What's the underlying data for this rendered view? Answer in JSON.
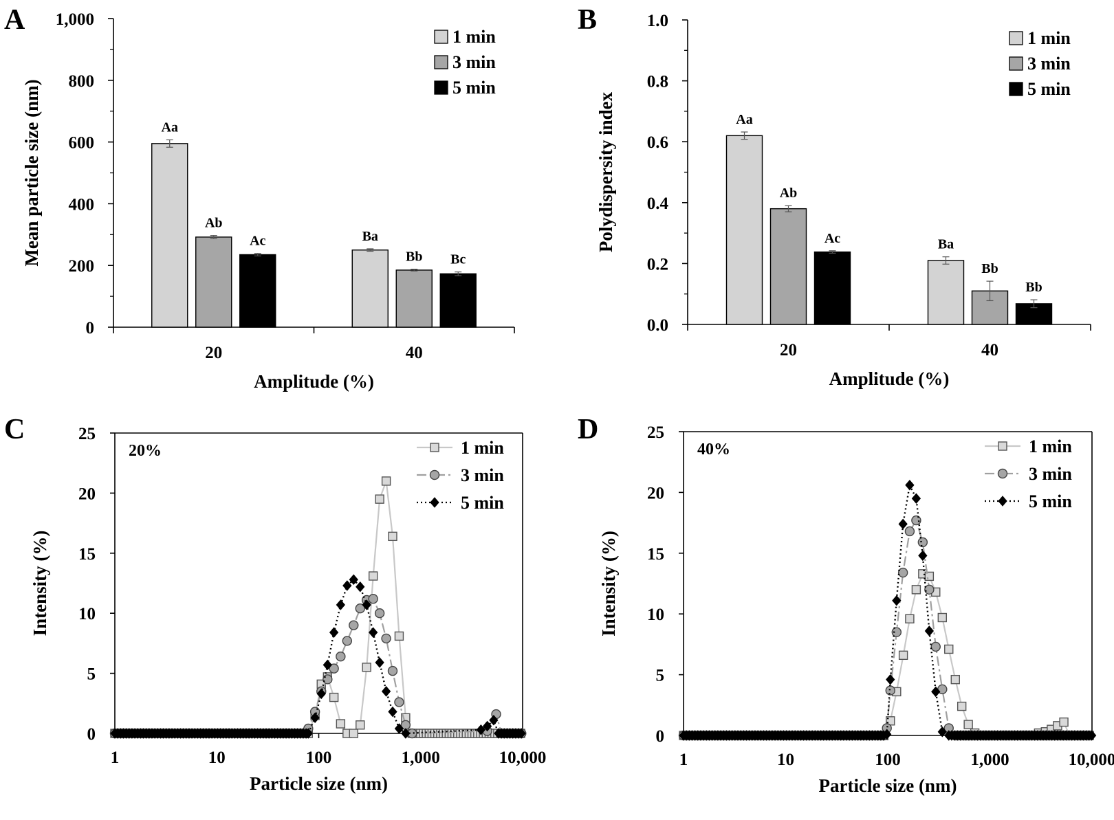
{
  "colors": {
    "min1": "#d3d3d3",
    "min3": "#a6a6a6",
    "min5": "#000000",
    "line1": "#c8c8c8",
    "line3": "#a0a0a0",
    "line5": "#000000"
  },
  "chart_data": [
    {
      "panel": "A",
      "type": "bar",
      "xlabel": "Amplitude (%)",
      "ylabel": "Mean particle size (nm)",
      "ylim": [
        0,
        1000
      ],
      "yticks": [
        "0",
        "200",
        "400",
        "600",
        "800",
        "1,000"
      ],
      "categories": [
        "20",
        "40"
      ],
      "legend_position": "top-right",
      "series": [
        {
          "name": "1 min",
          "values": [
            595,
            250
          ],
          "errors": [
            12,
            4
          ],
          "labels": [
            "Aa",
            "Ba"
          ]
        },
        {
          "name": "3 min",
          "values": [
            292,
            185
          ],
          "errors": [
            5,
            3
          ],
          "labels": [
            "Ab",
            "Bb"
          ]
        },
        {
          "name": "5 min",
          "values": [
            235,
            173
          ],
          "errors": [
            4,
            6
          ],
          "labels": [
            "Ac",
            "Bc"
          ]
        }
      ]
    },
    {
      "panel": "B",
      "type": "bar",
      "xlabel": "Amplitude (%)",
      "ylabel": "Polydispersity index",
      "ylim": [
        0,
        1.0
      ],
      "yticks": [
        "0.0",
        "0.2",
        "0.4",
        "0.6",
        "0.8",
        "1.0"
      ],
      "categories": [
        "20",
        "40"
      ],
      "legend_position": "top-right",
      "series": [
        {
          "name": "1 min",
          "values": [
            0.62,
            0.21
          ],
          "errors": [
            0.012,
            0.012
          ],
          "labels": [
            "Aa",
            "Ba"
          ]
        },
        {
          "name": "3 min",
          "values": [
            0.38,
            0.11
          ],
          "errors": [
            0.01,
            0.032
          ],
          "labels": [
            "Ab",
            "Bb"
          ]
        },
        {
          "name": "5 min",
          "values": [
            0.238,
            0.068
          ],
          "errors": [
            0.004,
            0.013
          ],
          "labels": [
            "Ac",
            "Bb"
          ]
        }
      ]
    },
    {
      "panel": "C",
      "type": "line",
      "inset_label": "20%",
      "xlabel": "Particle size (nm)",
      "ylabel": "Intensity (%)",
      "xscale": "log",
      "xlim": [
        1,
        10000
      ],
      "ylim": [
        0,
        25
      ],
      "xticks": [
        "1",
        "10",
        "100",
        "1,000",
        "10,000"
      ],
      "yticks": [
        "0",
        "5",
        "10",
        "15",
        "20",
        "25"
      ],
      "legend_position": "top-right",
      "series": [
        {
          "name": "1 min",
          "marker": "square",
          "dash": "solid",
          "points": [
            [
              79,
              0
            ],
            [
              92,
              1.5
            ],
            [
              106,
              4.1
            ],
            [
              122,
              4.7
            ],
            [
              141,
              3.0
            ],
            [
              164,
              0.8
            ],
            [
              190,
              0
            ],
            [
              220,
              0
            ],
            [
              255,
              0.7
            ],
            [
              295,
              5.5
            ],
            [
              342,
              13.1
            ],
            [
              396,
              19.5
            ],
            [
              459,
              21.0
            ],
            [
              531,
              16.4
            ],
            [
              615,
              8.1
            ],
            [
              712,
              1.3
            ],
            [
              825,
              0
            ]
          ]
        },
        {
          "name": "3 min",
          "marker": "circle",
          "dash": "dashdot",
          "points": [
            [
              79,
              0.4
            ],
            [
              92,
              1.8
            ],
            [
              106,
              3.5
            ],
            [
              122,
              4.5
            ],
            [
              141,
              5.4
            ],
            [
              164,
              6.4
            ],
            [
              190,
              7.7
            ],
            [
              220,
              9.0
            ],
            [
              255,
              10.4
            ],
            [
              295,
              11.1
            ],
            [
              342,
              11.2
            ],
            [
              396,
              10.0
            ],
            [
              459,
              7.9
            ],
            [
              531,
              5.2
            ],
            [
              615,
              2.6
            ],
            [
              712,
              0.7
            ],
            [
              825,
              0
            ],
            [
              4500,
              0.2
            ],
            [
              5500,
              1.6
            ],
            [
              6200,
              0
            ]
          ]
        },
        {
          "name": "5 min",
          "marker": "diamond",
          "dash": "dotted",
          "points": [
            [
              79,
              0
            ],
            [
              92,
              1.3
            ],
            [
              106,
              3.3
            ],
            [
              122,
              5.7
            ],
            [
              141,
              8.4
            ],
            [
              164,
              10.7
            ],
            [
              190,
              12.3
            ],
            [
              220,
              12.8
            ],
            [
              255,
              12.2
            ],
            [
              295,
              10.7
            ],
            [
              342,
              8.4
            ],
            [
              396,
              5.9
            ],
            [
              459,
              3.5
            ],
            [
              531,
              1.8
            ],
            [
              615,
              0.4
            ],
            [
              712,
              0
            ],
            [
              3900,
              0.3
            ],
            [
              4500,
              0.6
            ],
            [
              5200,
              1.1
            ],
            [
              5800,
              0
            ]
          ]
        }
      ]
    },
    {
      "panel": "D",
      "type": "line",
      "inset_label": "40%",
      "xlabel": "Particle size (nm)",
      "ylabel": "Intensity (%)",
      "xscale": "log",
      "xlim": [
        1,
        10000
      ],
      "ylim": [
        0,
        25
      ],
      "xticks": [
        "1",
        "10",
        "100",
        "1,000",
        "10,000"
      ],
      "yticks": [
        "0",
        "5",
        "10",
        "15",
        "20",
        "25"
      ],
      "legend_position": "top-right",
      "series": [
        {
          "name": "1 min",
          "marker": "square",
          "dash": "solid",
          "points": [
            [
              91,
              0
            ],
            [
              106,
              1.2
            ],
            [
              122,
              3.6
            ],
            [
              142,
              6.6
            ],
            [
              164,
              9.6
            ],
            [
              190,
              12.0
            ],
            [
              220,
              13.3
            ],
            [
              255,
              13.1
            ],
            [
              295,
              11.8
            ],
            [
              342,
              9.7
            ],
            [
              396,
              7.1
            ],
            [
              459,
              4.6
            ],
            [
              531,
              2.4
            ],
            [
              615,
              0.9
            ],
            [
              712,
              0.2
            ],
            [
              825,
              0
            ],
            [
              3000,
              0.2
            ],
            [
              3500,
              0.3
            ],
            [
              4000,
              0.5
            ],
            [
              4600,
              0.8
            ],
            [
              5300,
              1.1
            ],
            [
              6000,
              0
            ]
          ]
        },
        {
          "name": "3 min",
          "marker": "circle",
          "dash": "dashdot",
          "points": [
            [
              91,
              0
            ],
            [
              98,
              0.6
            ],
            [
              106,
              3.7
            ],
            [
              122,
              8.5
            ],
            [
              141,
              13.4
            ],
            [
              164,
              16.8
            ],
            [
              190,
              17.7
            ],
            [
              220,
              15.9
            ],
            [
              255,
              12.0
            ],
            [
              295,
              7.3
            ],
            [
              342,
              3.8
            ],
            [
              396,
              0.6
            ],
            [
              459,
              0
            ]
          ]
        },
        {
          "name": "5 min",
          "marker": "diamond",
          "dash": "dotted",
          "points": [
            [
              91,
              0
            ],
            [
              98,
              0.1
            ],
            [
              106,
              4.6
            ],
            [
              122,
              11.1
            ],
            [
              141,
              17.4
            ],
            [
              164,
              20.6
            ],
            [
              190,
              19.5
            ],
            [
              220,
              14.8
            ],
            [
              255,
              8.6
            ],
            [
              295,
              3.6
            ],
            [
              342,
              0.3
            ],
            [
              396,
              0
            ]
          ]
        }
      ]
    }
  ]
}
